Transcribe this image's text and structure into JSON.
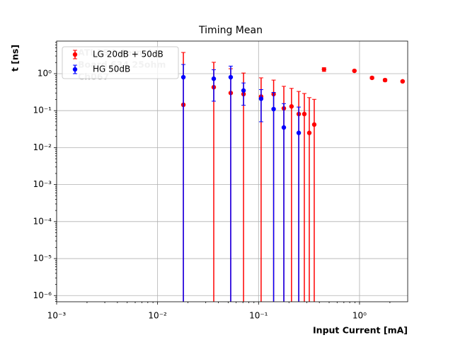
{
  "chart_data": {
    "type": "errorbar",
    "title": "Timing Mean",
    "x_label": "Input Current [mA]",
    "y_label": "t [ns]",
    "annotations": [
      "ATLAS Internal",
      "Board 634 25ohm",
      "Ch067"
    ],
    "xscale": "log",
    "yscale": "log",
    "grid": true,
    "legend": "upper left",
    "xlim": [
      0.001,
      3
    ],
    "ylim": [
      6.8e-07,
      7.6
    ],
    "xticks": [
      {
        "value": 0.001,
        "label": "10⁻³"
      },
      {
        "value": 0.01,
        "label": "10⁻²"
      },
      {
        "value": 0.1,
        "label": "10⁻¹"
      },
      {
        "value": 1,
        "label": "10⁰"
      }
    ],
    "yticks": [
      {
        "value": 1e-06,
        "label": "10⁻⁶"
      },
      {
        "value": 1e-05,
        "label": "10⁻⁵"
      },
      {
        "value": 0.0001,
        "label": "10⁻⁴"
      },
      {
        "value": 0.001,
        "label": "10⁻³"
      },
      {
        "value": 0.01,
        "label": "10⁻²"
      },
      {
        "value": 0.1,
        "label": "10⁻¹"
      },
      {
        "value": 1,
        "label": "10⁰"
      }
    ],
    "series": [
      {
        "name": "LG 20dB + 50dB",
        "color": "#ff0000",
        "x": [
          0.018,
          0.036,
          0.053,
          0.071,
          0.106,
          0.141,
          0.178,
          0.212,
          0.25,
          0.284,
          0.318,
          0.356,
          0.445,
          0.89,
          1.33,
          1.79,
          2.67
        ],
        "values": [
          0.144,
          0.43,
          0.3,
          0.28,
          0.24,
          0.28,
          0.115,
          0.13,
          0.081,
          0.081,
          0.025,
          0.042,
          1.3,
          1.19,
          0.77,
          0.67,
          0.62
        ],
        "errors": [
          3.6,
          1.6,
          1.06,
          0.76,
          0.53,
          0.39,
          0.34,
          0.27,
          0.25,
          0.21,
          0.2,
          0.16,
          0.15,
          0.05,
          0.05,
          0.05,
          0.03
        ]
      },
      {
        "name": "HG 50dB",
        "color": "#0000ff",
        "x": [
          0.018,
          0.036,
          0.053,
          0.071,
          0.106,
          0.141,
          0.178,
          0.25
        ],
        "values": [
          0.8,
          0.73,
          0.8,
          0.35,
          0.21,
          0.11,
          0.035,
          0.025
        ],
        "errors": [
          0.97,
          0.55,
          0.8,
          0.21,
          0.16,
          0.2,
          0.12,
          0.1
        ]
      }
    ]
  }
}
